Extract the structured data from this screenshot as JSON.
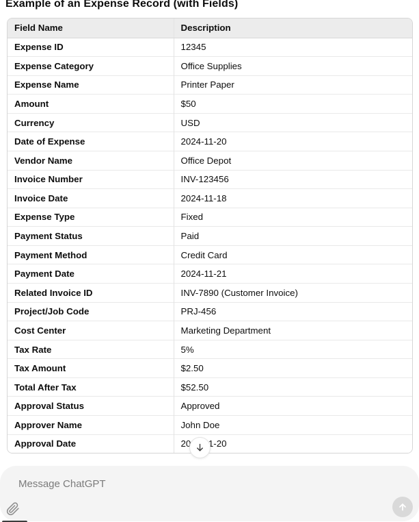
{
  "title": "Example of an Expense Record (with Fields)",
  "table": {
    "headers": [
      "Field Name",
      "Description"
    ],
    "rows": [
      {
        "field": "Expense ID",
        "description": "12345"
      },
      {
        "field": "Expense Category",
        "description": "Office Supplies"
      },
      {
        "field": "Expense Name",
        "description": "Printer Paper"
      },
      {
        "field": "Amount",
        "description": "$50"
      },
      {
        "field": "Currency",
        "description": "USD"
      },
      {
        "field": "Date of Expense",
        "description": "2024-11-20"
      },
      {
        "field": "Vendor Name",
        "description": "Office Depot"
      },
      {
        "field": "Invoice Number",
        "description": "INV-123456"
      },
      {
        "field": "Invoice Date",
        "description": "2024-11-18"
      },
      {
        "field": "Expense Type",
        "description": "Fixed"
      },
      {
        "field": "Payment Status",
        "description": "Paid"
      },
      {
        "field": "Payment Method",
        "description": "Credit Card"
      },
      {
        "field": "Payment Date",
        "description": "2024-11-21"
      },
      {
        "field": "Related Invoice ID",
        "description": "INV-7890 (Customer Invoice)"
      },
      {
        "field": "Project/Job Code",
        "description": "PRJ-456"
      },
      {
        "field": "Cost Center",
        "description": "Marketing Department"
      },
      {
        "field": "Tax Rate",
        "description": "5%"
      },
      {
        "field": "Tax Amount",
        "description": "$2.50"
      },
      {
        "field": "Total After Tax",
        "description": "$52.50"
      },
      {
        "field": "Approval Status",
        "description": "Approved"
      },
      {
        "field": "Approver Name",
        "description": "John Doe"
      },
      {
        "field": "Approval Date",
        "description": "2024-11-20"
      }
    ]
  },
  "scroll_button": {
    "icon": "arrow-down"
  },
  "composer": {
    "placeholder": "Message ChatGPT",
    "attach_icon": "paperclip",
    "send_icon": "arrow-up"
  },
  "colors": {
    "header_bg": "#ececec",
    "table_border": "#d6d6d6",
    "row_border": "#e9e9e9",
    "composer_bg": "#f4f4f4",
    "send_btn_bg": "#d9d9d9",
    "placeholder_text": "#7b7b7b",
    "text": "#0d0d0d"
  }
}
